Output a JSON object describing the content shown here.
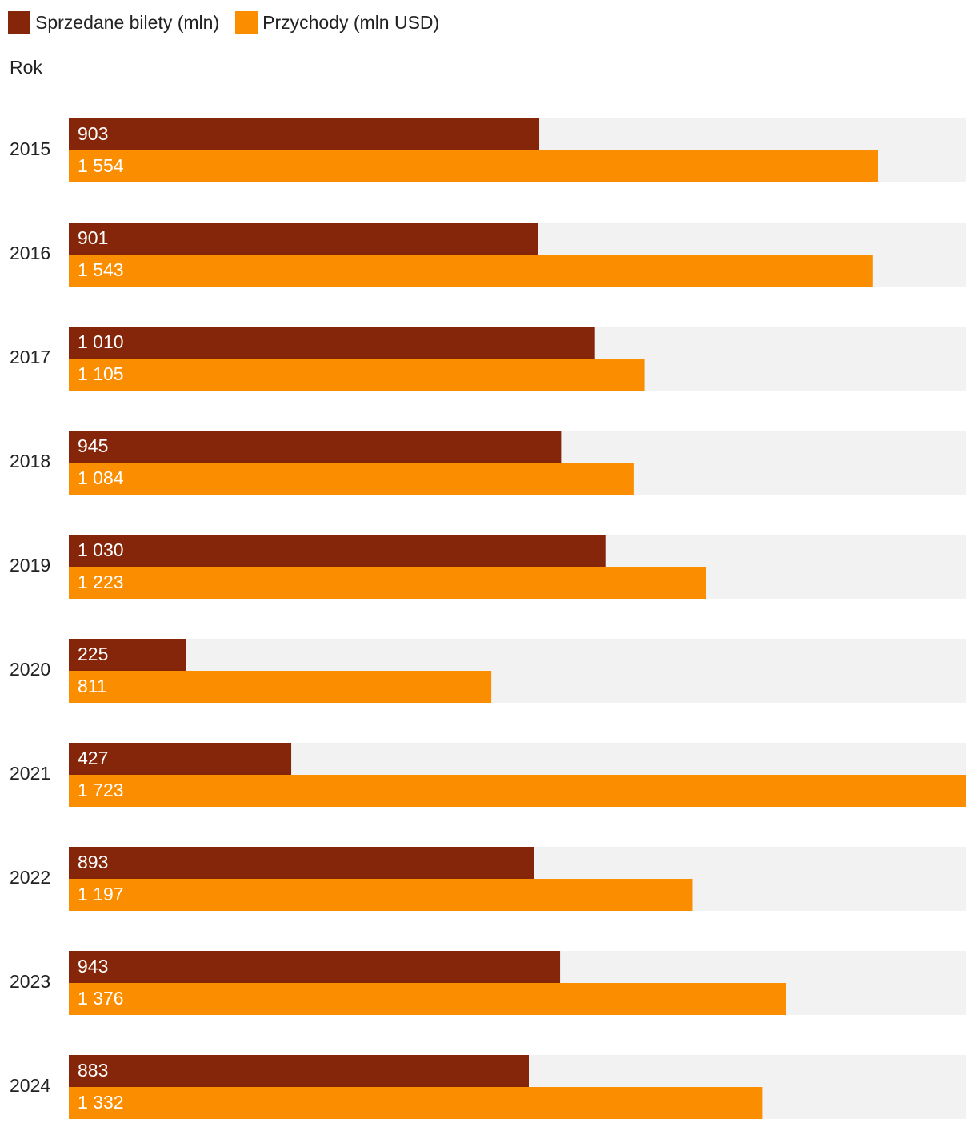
{
  "chart_data": {
    "type": "bar",
    "orientation": "horizontal",
    "axis_title": "Rok",
    "categories": [
      "2015",
      "2016",
      "2017",
      "2018",
      "2019",
      "2020",
      "2021",
      "2022",
      "2023",
      "2024"
    ],
    "series": [
      {
        "name": "Sprzedane bilety (mln)",
        "color": "#85260a",
        "values": [
          903,
          901,
          1010,
          945,
          1030,
          225,
          427,
          893,
          943,
          883
        ],
        "labels": [
          "903",
          "901",
          "1 010",
          "945",
          "1 030",
          "225",
          "427",
          "893",
          "943",
          "883"
        ]
      },
      {
        "name": "Przychody (mln USD)",
        "color": "#fa8e00",
        "values": [
          1554,
          1543,
          1105,
          1084,
          1223,
          811,
          1723,
          1197,
          1376,
          1332
        ],
        "labels": [
          "1 554",
          "1 543",
          "1 105",
          "1 084",
          "1 223",
          "811",
          "1 723",
          "1 197",
          "1 376",
          "1 332"
        ]
      }
    ],
    "xlim": [
      0,
      1723
    ],
    "track_color": "#f2f2f2",
    "grid": false,
    "legend": "top-left"
  }
}
